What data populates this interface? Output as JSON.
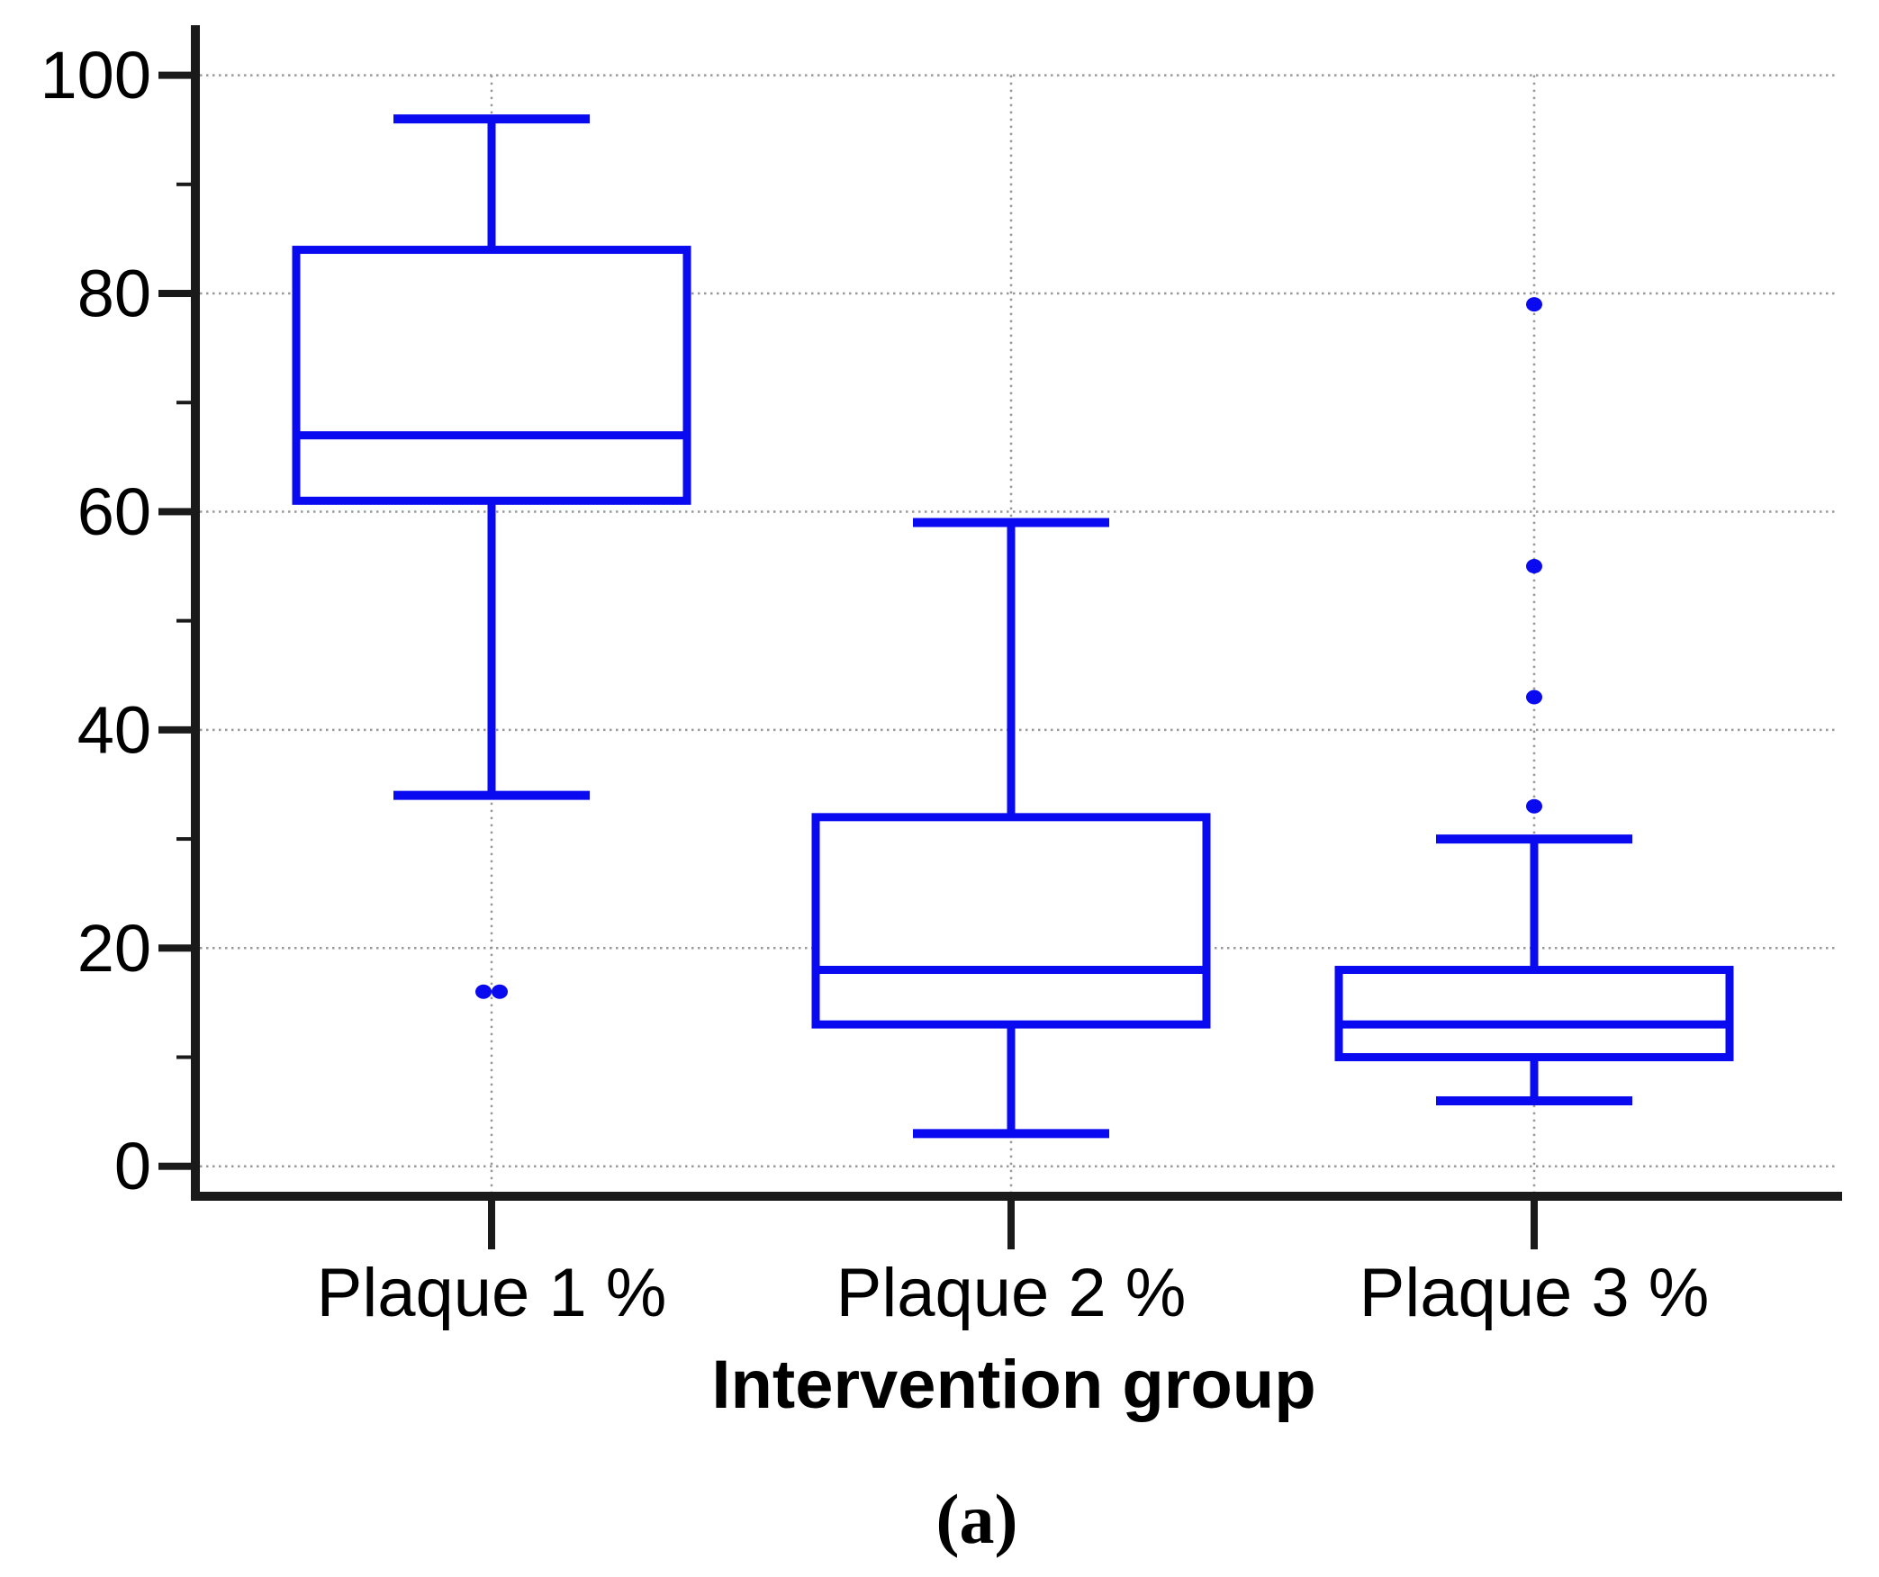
{
  "figure": {
    "caption": "(a)"
  },
  "chart_data": {
    "type": "box",
    "title": "",
    "xlabel": "Intervention group",
    "ylabel": "",
    "ylim": [
      0,
      100
    ],
    "y_major_ticks": [
      0,
      20,
      40,
      60,
      80,
      100
    ],
    "y_minor_ticks": [
      10,
      30,
      50,
      70,
      90
    ],
    "grid": "dotted horizontal lines at major y ticks, dotted vertical lines at each category",
    "legend_position": "none",
    "categories": [
      "Plaque 1 %",
      "Plaque 2 %",
      "Plaque 3 %"
    ],
    "series": [
      {
        "category": "Plaque 1 %",
        "min_whisker": 34,
        "q1": 61,
        "median": 67,
        "q3": 84,
        "max_whisker": 96,
        "outliers": [
          16,
          16
        ]
      },
      {
        "category": "Plaque 2 %",
        "min_whisker": 3,
        "q1": 13,
        "median": 18,
        "q3": 32,
        "max_whisker": 59,
        "outliers": []
      },
      {
        "category": "Plaque 3 %",
        "min_whisker": 6,
        "q1": 10,
        "median": 13,
        "q3": 18,
        "max_whisker": 30,
        "outliers": [
          33,
          43,
          55,
          79
        ]
      }
    ],
    "colors": {
      "box": "#0a0af0",
      "axis": "#1a1a1a",
      "grid": "#999999",
      "text": "#000000"
    }
  }
}
